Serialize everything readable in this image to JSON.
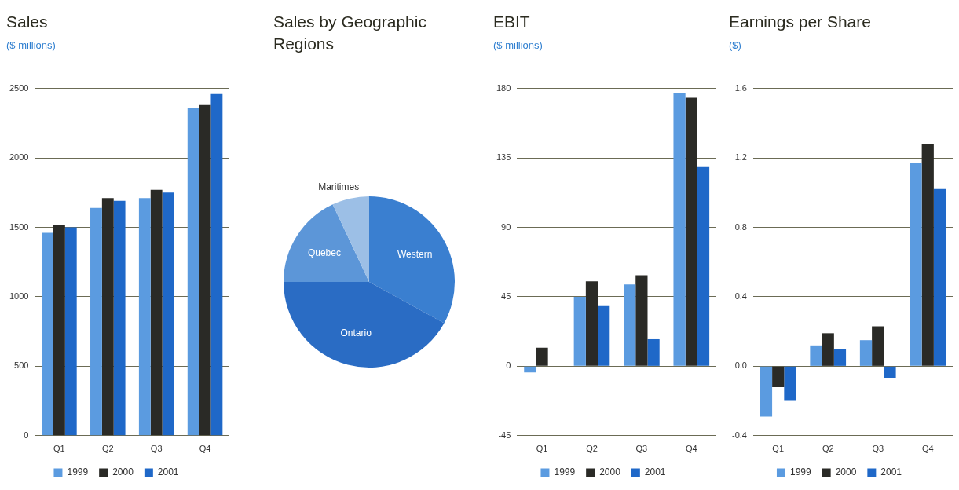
{
  "chart_data": [
    {
      "type": "bar",
      "title": "Sales",
      "subtitle": "($ millions)",
      "categories": [
        "Q1",
        "Q2",
        "Q3",
        "Q4"
      ],
      "series": [
        {
          "name": "1999",
          "color": "#5b9be0",
          "values": [
            1460,
            1640,
            1710,
            2360
          ]
        },
        {
          "name": "2000",
          "color": "#2a2a26",
          "values": [
            1520,
            1710,
            1770,
            2380
          ]
        },
        {
          "name": "2001",
          "color": "#1f68c8",
          "values": [
            1500,
            1690,
            1750,
            2460
          ]
        }
      ],
      "ylim": [
        0,
        2500
      ],
      "yticks": [
        0,
        500,
        1000,
        1500,
        2000,
        2500
      ],
      "grid": "y",
      "legend": "bottom"
    },
    {
      "type": "pie",
      "title": "Sales by Geographic Regions",
      "categories": [
        "Western",
        "Ontario",
        "Quebec",
        "Maritimes"
      ],
      "values": [
        33,
        42,
        18,
        7
      ],
      "colors": [
        "#3a7fd0",
        "#2a6cc4",
        "#5c96d8",
        "#9cbfe6"
      ]
    },
    {
      "type": "bar",
      "title": "EBIT",
      "subtitle": "($ millions)",
      "categories": [
        "Q1",
        "Q2",
        "Q3",
        "Q4"
      ],
      "series": [
        {
          "name": "1999",
          "color": "#5b9be0",
          "values": [
            -4,
            45,
            53,
            177
          ]
        },
        {
          "name": "2000",
          "color": "#2a2a26",
          "values": [
            12,
            55,
            59,
            174
          ]
        },
        {
          "name": "2001",
          "color": "#1f68c8",
          "values": [
            0,
            39,
            17.5,
            129
          ]
        }
      ],
      "ylim": [
        -45,
        180
      ],
      "yticks": [
        -45,
        0,
        45,
        90,
        135,
        180
      ],
      "grid": "y",
      "legend": "bottom"
    },
    {
      "type": "bar",
      "title": "Earnings per Share",
      "subtitle": "($)",
      "categories": [
        "Q1",
        "Q2",
        "Q3",
        "Q4"
      ],
      "series": [
        {
          "name": "1999",
          "color": "#5b9be0",
          "values": [
            -0.29,
            0.12,
            0.15,
            1.17
          ]
        },
        {
          "name": "2000",
          "color": "#2a2a26",
          "values": [
            -0.12,
            0.19,
            0.23,
            1.28
          ]
        },
        {
          "name": "2001",
          "color": "#1f68c8",
          "values": [
            -0.2,
            0.1,
            -0.07,
            1.02
          ]
        }
      ],
      "ylim": [
        -0.4,
        1.6
      ],
      "yticks": [
        {
          "value": -0.4,
          "label": "-0.4"
        },
        {
          "value": 0,
          "label": "0.0"
        },
        {
          "value": 0.4,
          "label": "0.4"
        },
        {
          "value": 0.8,
          "label": "0.8"
        },
        {
          "value": 1.2,
          "label": "1.2"
        },
        {
          "value": 1.6,
          "label": "1.6"
        }
      ],
      "grid": "y",
      "legend": "bottom"
    }
  ]
}
